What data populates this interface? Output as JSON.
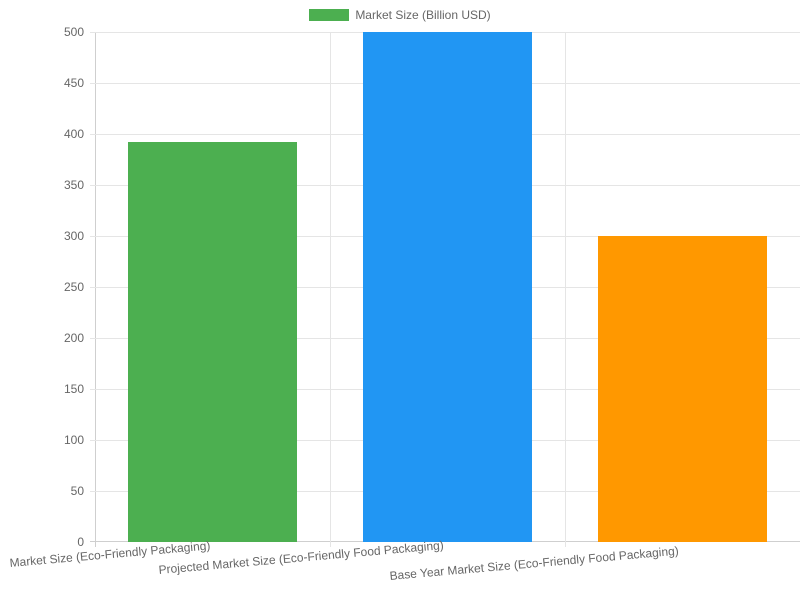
{
  "chart_data": {
    "type": "bar",
    "title": "",
    "xlabel": "",
    "ylabel": "",
    "ylim": [
      0,
      500
    ],
    "yticks": [
      0,
      50,
      100,
      150,
      200,
      250,
      300,
      350,
      400,
      450,
      500
    ],
    "grid": true,
    "legend_position": "top",
    "categories": [
      "Market Size (Eco-Friendly Packaging)",
      "Projected Market Size (Eco-Friendly Food Packaging)",
      "Base Year Market Size (Eco-Friendly Food Packaging)"
    ],
    "series": [
      {
        "name": "Market Size (Billion USD)",
        "values": [
          392,
          500,
          300
        ],
        "colors": [
          "#4caf50",
          "#2196f3",
          "#ff9800"
        ]
      }
    ]
  },
  "legend": {
    "label": "Market Size (Billion USD)",
    "color": "#4caf50"
  },
  "y_axis": {
    "ticks": [
      "0",
      "50",
      "100",
      "150",
      "200",
      "250",
      "300",
      "350",
      "400",
      "450",
      "500"
    ]
  },
  "x_axis": {
    "labels": [
      "Market Size (Eco-Friendly Packaging)",
      "Projected Market Size (Eco-Friendly Food Packaging)",
      "Base Year Market Size (Eco-Friendly Food Packaging)"
    ]
  }
}
